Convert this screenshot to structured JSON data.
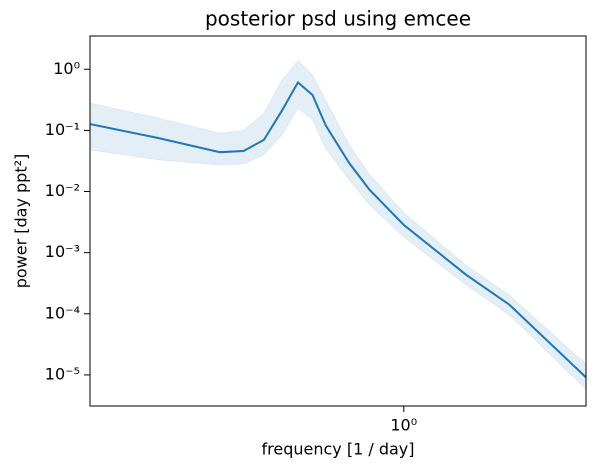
{
  "chart_data": {
    "type": "line",
    "title": "posterior psd using emcee",
    "x_label": "frequency [1 / day]",
    "y_label": "power [day ppt²]",
    "x": [
      0.128,
      0.2,
      0.3,
      0.35,
      0.4,
      0.45,
      0.5,
      0.55,
      0.6,
      0.7,
      0.8,
      1.0,
      1.5,
      2.0,
      3.3
    ],
    "values": [
      0.127,
      0.075,
      0.044,
      0.046,
      0.07,
      0.21,
      0.61,
      0.38,
      0.12,
      0.029,
      0.0106,
      0.00285,
      0.00044,
      0.00014,
      9.1e-06
    ],
    "upper": [
      0.28,
      0.16,
      0.09,
      0.1,
      0.19,
      0.66,
      1.4,
      0.8,
      0.31,
      0.058,
      0.019,
      0.0045,
      0.00063,
      0.0002,
      1.5e-05
    ],
    "lower": [
      0.048,
      0.033,
      0.027,
      0.028,
      0.04,
      0.084,
      0.23,
      0.15,
      0.05,
      0.0155,
      0.006,
      0.0018,
      0.0003,
      9.5e-05,
      5.8e-06
    ],
    "color": "#1f77b4",
    "xlog": true,
    "ylog": true,
    "xlim": [
      0.128,
      3.3
    ],
    "ylim": [
      3.1e-06,
      3.5
    ],
    "xticks": [
      {
        "value": 1,
        "label": "10⁰"
      }
    ],
    "yticks": [
      {
        "value": 1,
        "label": "10⁰"
      },
      {
        "value": 0.1,
        "label": "10⁻¹"
      },
      {
        "value": 0.01,
        "label": "10⁻²"
      },
      {
        "value": 0.001,
        "label": "10⁻³"
      },
      {
        "value": 0.0001,
        "label": "10⁻⁴"
      },
      {
        "value": 1e-05,
        "label": "10⁻⁵"
      }
    ]
  }
}
